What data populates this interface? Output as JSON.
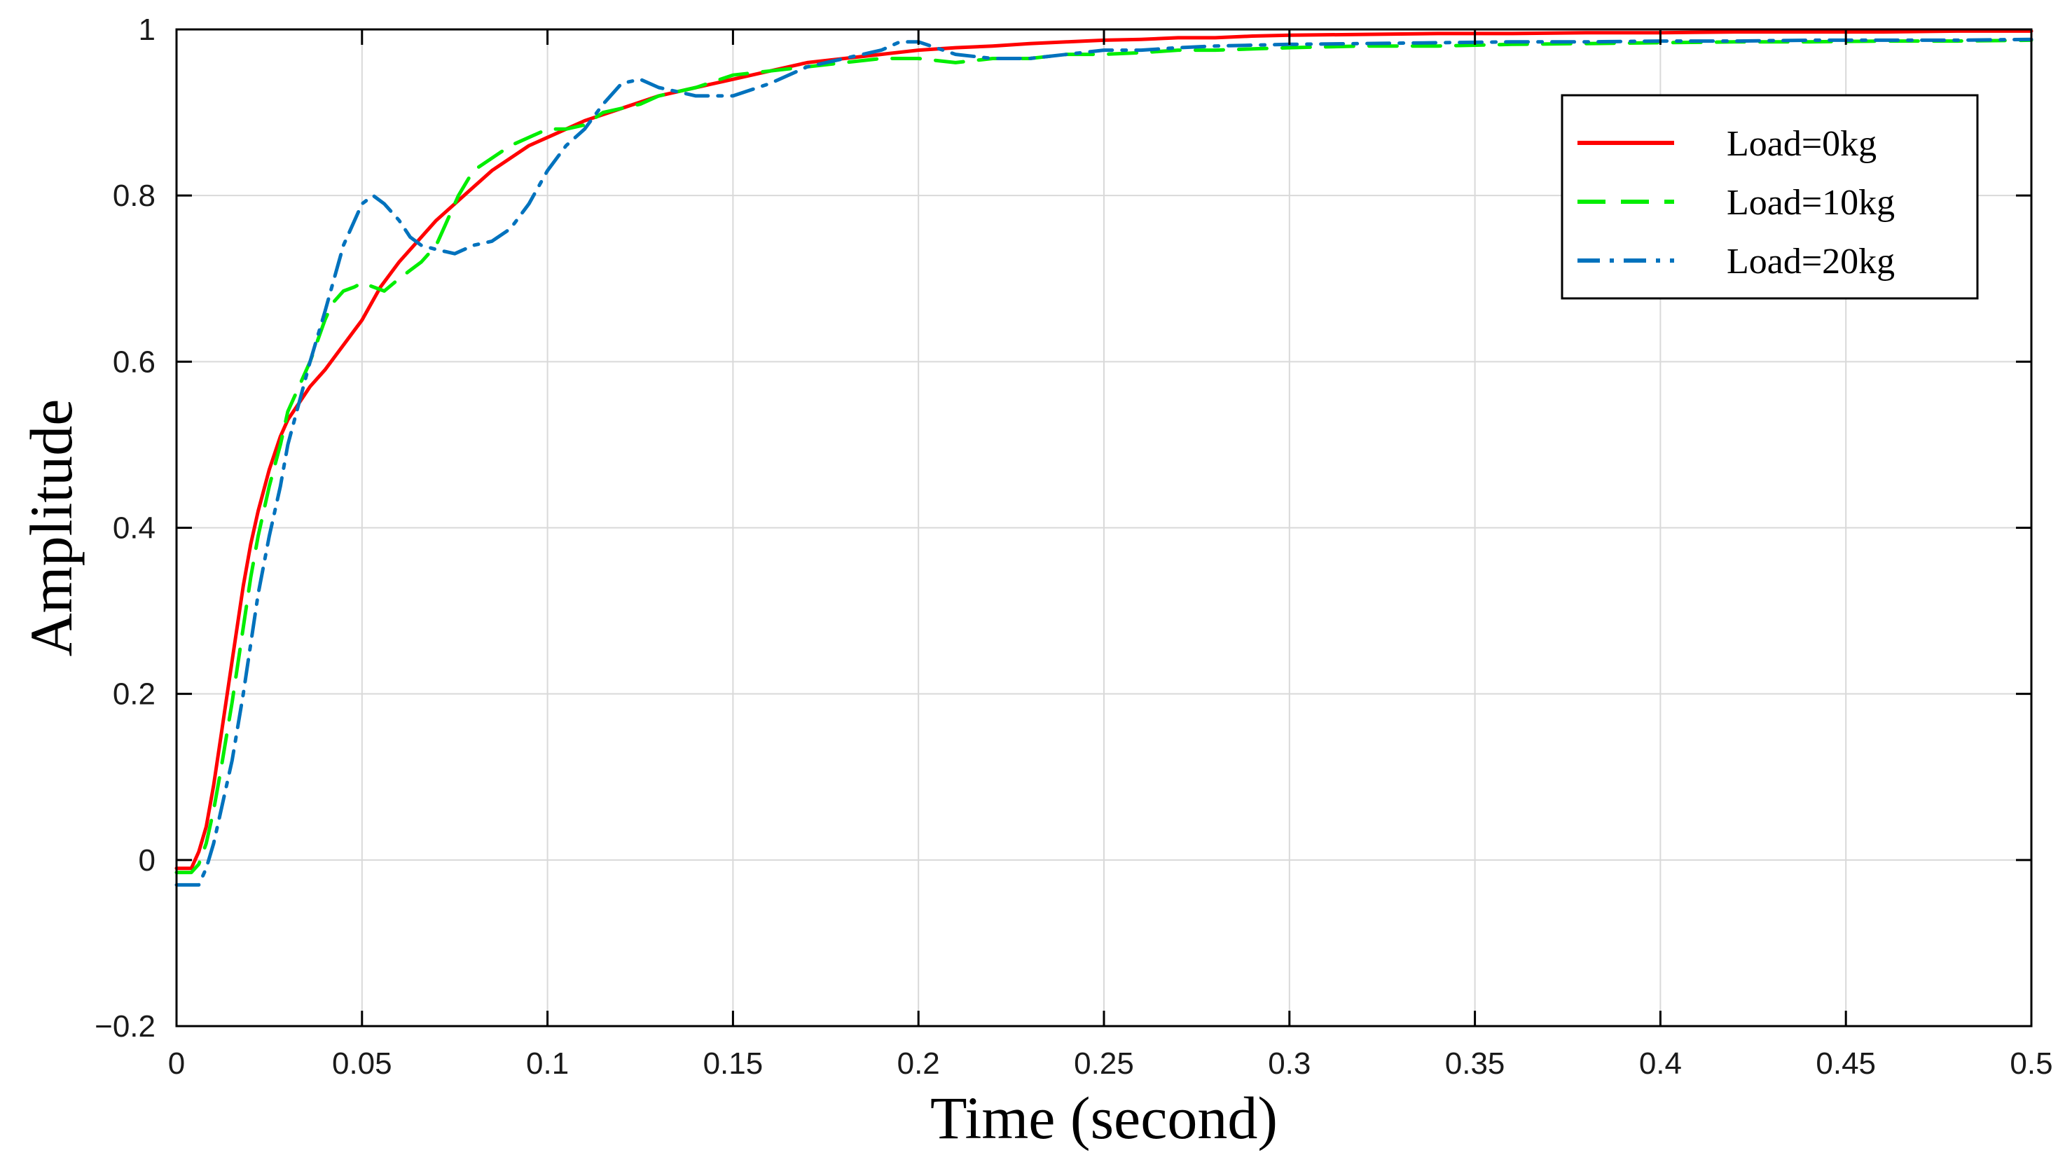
{
  "chart_data": {
    "type": "line",
    "title": "",
    "xlabel": "Time (second)",
    "ylabel": "Amplitude",
    "xlim": [
      0,
      0.5
    ],
    "ylim": [
      -0.2,
      1
    ],
    "grid": true,
    "legend_position": "top-right",
    "x_ticks": [
      "0",
      "0.05",
      "0.1",
      "0.15",
      "0.2",
      "0.25",
      "0.3",
      "0.35",
      "0.4",
      "0.45",
      "0.5"
    ],
    "y_ticks": [
      "−0.2",
      "0",
      "0.2",
      "0.4",
      "0.6",
      "0.8",
      "1"
    ],
    "series": [
      {
        "name": "Load=0kg",
        "color": "#ff0000",
        "dash": "solid",
        "x": [
          0,
          0.004,
          0.006,
          0.008,
          0.01,
          0.012,
          0.015,
          0.018,
          0.02,
          0.022,
          0.025,
          0.028,
          0.03,
          0.033,
          0.036,
          0.04,
          0.045,
          0.05,
          0.055,
          0.06,
          0.065,
          0.07,
          0.075,
          0.08,
          0.085,
          0.09,
          0.095,
          0.1,
          0.105,
          0.11,
          0.12,
          0.13,
          0.14,
          0.15,
          0.16,
          0.17,
          0.18,
          0.19,
          0.2,
          0.21,
          0.22,
          0.23,
          0.24,
          0.25,
          0.26,
          0.27,
          0.28,
          0.29,
          0.3,
          0.32,
          0.34,
          0.36,
          0.38,
          0.4,
          0.42,
          0.44,
          0.46,
          0.48,
          0.5
        ],
        "y": [
          -0.01,
          -0.01,
          0.01,
          0.04,
          0.09,
          0.15,
          0.24,
          0.33,
          0.38,
          0.42,
          0.47,
          0.51,
          0.53,
          0.55,
          0.57,
          0.59,
          0.62,
          0.65,
          0.69,
          0.72,
          0.745,
          0.77,
          0.79,
          0.81,
          0.83,
          0.845,
          0.86,
          0.87,
          0.88,
          0.89,
          0.905,
          0.92,
          0.93,
          0.94,
          0.95,
          0.96,
          0.965,
          0.97,
          0.975,
          0.978,
          0.98,
          0.983,
          0.985,
          0.987,
          0.988,
          0.99,
          0.99,
          0.992,
          0.993,
          0.994,
          0.995,
          0.995,
          0.996,
          0.996,
          0.997,
          0.997,
          0.997,
          0.998,
          0.998
        ]
      },
      {
        "name": "Load=10kg",
        "color": "#00ee00",
        "dash": "dashed",
        "x": [
          0,
          0.004,
          0.006,
          0.008,
          0.01,
          0.012,
          0.015,
          0.018,
          0.02,
          0.022,
          0.025,
          0.028,
          0.03,
          0.033,
          0.036,
          0.04,
          0.042,
          0.045,
          0.048,
          0.05,
          0.053,
          0.056,
          0.06,
          0.063,
          0.066,
          0.07,
          0.073,
          0.076,
          0.08,
          0.085,
          0.09,
          0.095,
          0.1,
          0.105,
          0.11,
          0.115,
          0.12,
          0.125,
          0.13,
          0.135,
          0.14,
          0.15,
          0.16,
          0.17,
          0.18,
          0.19,
          0.2,
          0.21,
          0.22,
          0.23,
          0.24,
          0.25,
          0.26,
          0.27,
          0.28,
          0.3,
          0.32,
          0.34,
          0.36,
          0.38,
          0.4,
          0.42,
          0.44,
          0.46,
          0.48,
          0.5
        ],
        "y": [
          -0.015,
          -0.015,
          -0.005,
          0.02,
          0.06,
          0.11,
          0.19,
          0.28,
          0.34,
          0.39,
          0.45,
          0.5,
          0.54,
          0.57,
          0.6,
          0.65,
          0.67,
          0.685,
          0.69,
          0.695,
          0.69,
          0.685,
          0.7,
          0.71,
          0.72,
          0.74,
          0.77,
          0.8,
          0.83,
          0.845,
          0.86,
          0.87,
          0.88,
          0.88,
          0.885,
          0.9,
          0.905,
          0.91,
          0.92,
          0.925,
          0.93,
          0.945,
          0.95,
          0.955,
          0.96,
          0.965,
          0.965,
          0.96,
          0.965,
          0.965,
          0.97,
          0.97,
          0.972,
          0.975,
          0.975,
          0.978,
          0.98,
          0.98,
          0.982,
          0.983,
          0.984,
          0.985,
          0.985,
          0.986,
          0.986,
          0.987
        ]
      },
      {
        "name": "Load=20kg",
        "color": "#0072bd",
        "dash": "dashdot",
        "x": [
          0,
          0.006,
          0.008,
          0.01,
          0.012,
          0.015,
          0.018,
          0.02,
          0.022,
          0.025,
          0.028,
          0.03,
          0.033,
          0.036,
          0.04,
          0.045,
          0.05,
          0.053,
          0.056,
          0.06,
          0.063,
          0.066,
          0.07,
          0.075,
          0.08,
          0.085,
          0.09,
          0.095,
          0.1,
          0.105,
          0.11,
          0.115,
          0.12,
          0.125,
          0.13,
          0.135,
          0.14,
          0.15,
          0.16,
          0.17,
          0.18,
          0.19,
          0.195,
          0.2,
          0.21,
          0.22,
          0.23,
          0.24,
          0.25,
          0.26,
          0.27,
          0.28,
          0.3,
          0.32,
          0.34,
          0.36,
          0.38,
          0.4,
          0.42,
          0.44,
          0.46,
          0.48,
          0.5
        ],
        "y": [
          -0.03,
          -0.03,
          -0.01,
          0.02,
          0.06,
          0.12,
          0.2,
          0.26,
          0.32,
          0.39,
          0.45,
          0.5,
          0.55,
          0.6,
          0.66,
          0.74,
          0.79,
          0.8,
          0.79,
          0.77,
          0.75,
          0.74,
          0.735,
          0.73,
          0.74,
          0.745,
          0.76,
          0.79,
          0.83,
          0.86,
          0.88,
          0.91,
          0.935,
          0.94,
          0.93,
          0.925,
          0.92,
          0.92,
          0.935,
          0.955,
          0.965,
          0.975,
          0.985,
          0.985,
          0.97,
          0.965,
          0.965,
          0.97,
          0.975,
          0.975,
          0.978,
          0.98,
          0.982,
          0.983,
          0.984,
          0.985,
          0.985,
          0.986,
          0.986,
          0.987,
          0.987,
          0.987,
          0.988
        ]
      }
    ]
  }
}
